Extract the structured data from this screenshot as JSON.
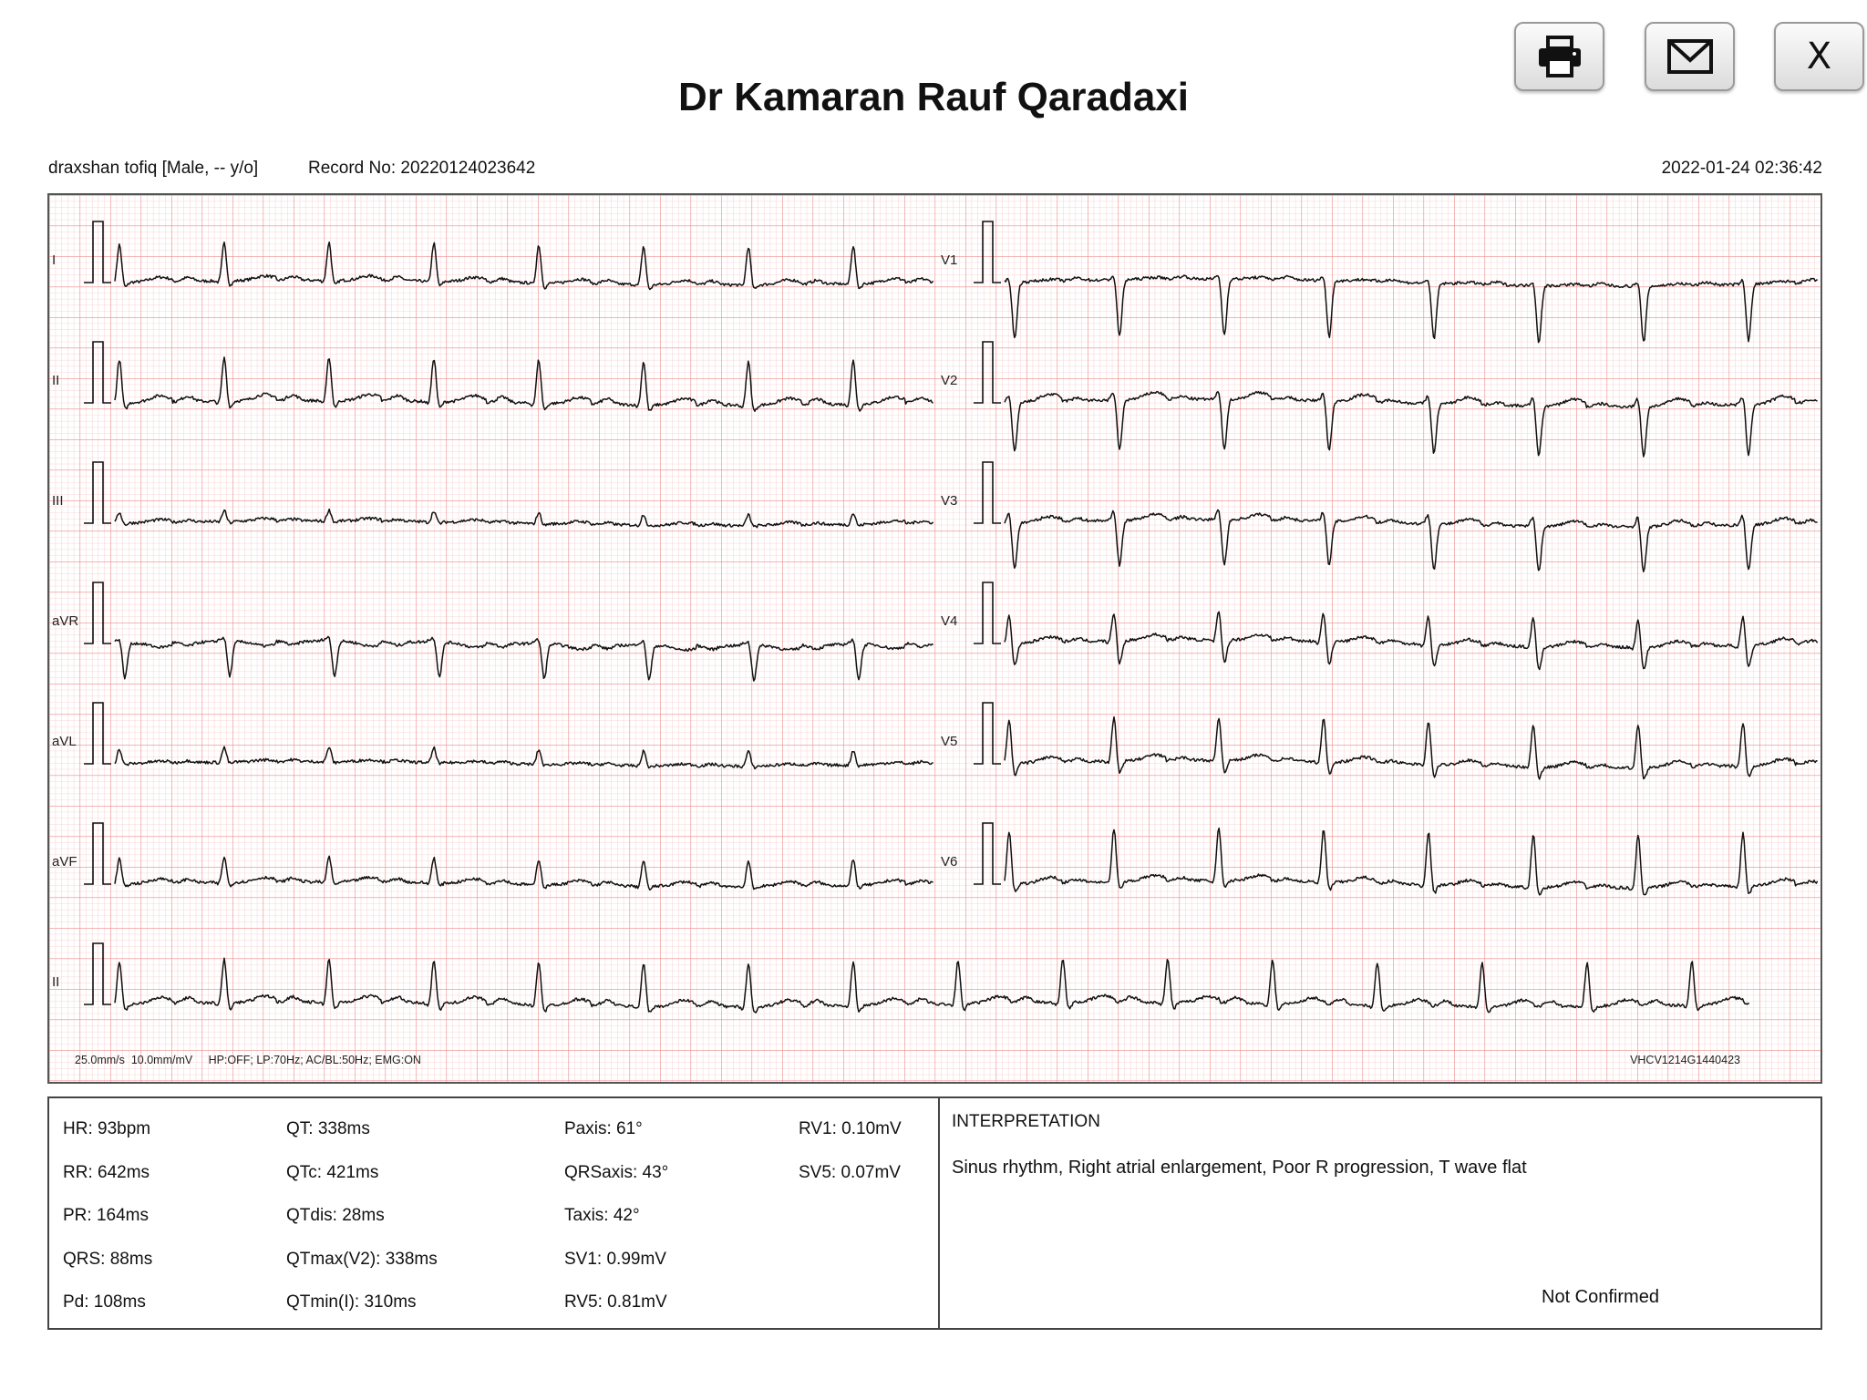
{
  "header": {
    "title": "Dr Kamaran Rauf Qaradaxi",
    "toolbar": {
      "print_icon": "printer-icon",
      "email_icon": "envelope-icon",
      "close_label": "X"
    }
  },
  "patient": {
    "name_line": "draxshan tofiq [Male, -- y/o]",
    "record_no": "Record No: 20220124023642",
    "datetime": "2022-01-24 02:36:42"
  },
  "ecg": {
    "grid_minor_color": "#f6c7c7",
    "grid_major_color": "#ee8a8a",
    "trace_color": "#111111",
    "left_leads": [
      "I",
      "II",
      "III",
      "aVR",
      "aVL",
      "aVF"
    ],
    "right_leads": [
      "V1",
      "V2",
      "V3",
      "V4",
      "V5",
      "V6"
    ],
    "rhythm_lead": "II",
    "footer_left": "25.0mm/s  10.0mm/mV     HP:OFF; LP:70Hz; AC/BL:50Hz; EMG:ON",
    "footer_right": "VHCV1214G1440423"
  },
  "measurements": {
    "col1": [
      "HR: 93bpm",
      "RR: 642ms",
      "PR: 164ms",
      "QRS: 88ms",
      "Pd: 108ms"
    ],
    "col2": [
      "QT: 338ms",
      "QTc: 421ms",
      "QTdis: 28ms",
      "QTmax(V2): 338ms",
      "QTmin(I): 310ms"
    ],
    "col3": [
      "Paxis: 61°",
      "QRSaxis: 43°",
      "Taxis: 42°",
      "SV1: 0.99mV",
      "RV5: 0.81mV"
    ],
    "col4": [
      "RV1: 0.10mV",
      "SV5: 0.07mV"
    ]
  },
  "interpretation": {
    "heading": "INTERPRETATION",
    "text": "Sinus rhythm, Right atrial enlargement, Poor R progression, T wave flat",
    "status": "Not Confirmed"
  }
}
